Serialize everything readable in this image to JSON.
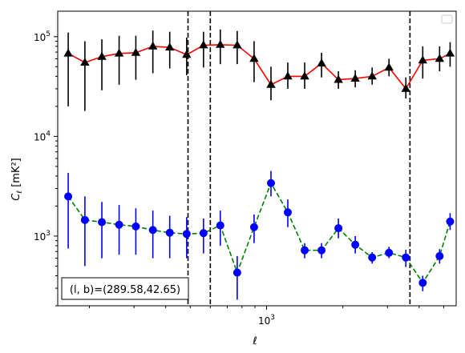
{
  "chart_data": {
    "type": "line",
    "xscale": "log",
    "yscale": "log",
    "xlim": [
      150,
      5600
    ],
    "ylim": [
      200,
      180000
    ],
    "xlabel": "ℓ",
    "ylabel_main": "C",
    "ylabel_sub": "ℓ",
    "ylabel_unit": "[mK²]",
    "x_tick_labels": [
      {
        "value": 1000,
        "base": "10",
        "exp": "3"
      }
    ],
    "y_tick_labels": [
      {
        "value": 1000,
        "base": "10",
        "exp": "3"
      },
      {
        "value": 10000,
        "base": "10",
        "exp": "4"
      },
      {
        "value": 100000,
        "base": "10",
        "exp": "5"
      }
    ],
    "legend": {
      "placement": "top-right",
      "entries": []
    },
    "annotation": "(l, b)=(289.58,42.65)",
    "vlines": [
      490,
      600,
      3680
    ],
    "series": [
      {
        "color": "#ff0000",
        "marker": "triangle",
        "marker_color": "#000000",
        "errorbar_color": "#000000",
        "linestyle": "solid",
        "x": [
          165,
          192,
          224,
          262,
          305,
          356,
          415,
          484,
          564,
          657,
          766,
          893,
          1041,
          1213,
          1414,
          1648,
          1921,
          2239,
          2610,
          3042,
          3545,
          4133,
          4817,
          5300
        ],
        "y": [
          68000,
          55000,
          63000,
          68000,
          69000,
          80000,
          78000,
          66000,
          82000,
          83000,
          82000,
          60000,
          33000,
          40000,
          40000,
          54000,
          37000,
          38000,
          40000,
          49000,
          30000,
          58000,
          60000,
          68000
        ],
        "yerr_low": [
          48000,
          37000,
          34000,
          35000,
          32000,
          37000,
          30000,
          25000,
          33000,
          30000,
          29000,
          25000,
          10000,
          10000,
          10000,
          15000,
          7000,
          7000,
          7000,
          9000,
          6000,
          20000,
          15000,
          18000
        ],
        "yerr_high": [
          42000,
          35000,
          31000,
          34000,
          33000,
          35000,
          34000,
          32000,
          30000,
          35000,
          32000,
          30000,
          17000,
          15000,
          15000,
          15000,
          8000,
          8000,
          9000,
          11000,
          9000,
          22000,
          20000,
          20000
        ]
      },
      {
        "color": "#008000",
        "marker": "circle",
        "marker_color": "#0000ff",
        "errorbar_color": "#0000ff",
        "linestyle": "dashed",
        "x": [
          165,
          192,
          224,
          262,
          305,
          356,
          415,
          484,
          564,
          657,
          766,
          893,
          1041,
          1213,
          1414,
          1648,
          1921,
          2239,
          2610,
          3042,
          3545,
          4133,
          4817,
          5300
        ],
        "y": [
          2500,
          1450,
          1380,
          1300,
          1250,
          1150,
          1080,
          1050,
          1070,
          1280,
          430,
          1230,
          3400,
          1730,
          720,
          720,
          1200,
          820,
          610,
          680,
          610,
          340,
          630,
          1400
        ],
        "yerr_low": [
          1750,
          950,
          780,
          650,
          600,
          550,
          480,
          450,
          400,
          480,
          200,
          380,
          900,
          500,
          120,
          120,
          250,
          150,
          80,
          80,
          120,
          60,
          100,
          250
        ],
        "yerr_high": [
          1800,
          1050,
          820,
          750,
          650,
          650,
          520,
          500,
          430,
          520,
          200,
          420,
          1100,
          600,
          130,
          130,
          300,
          180,
          80,
          100,
          120,
          60,
          110,
          300
        ]
      }
    ]
  }
}
